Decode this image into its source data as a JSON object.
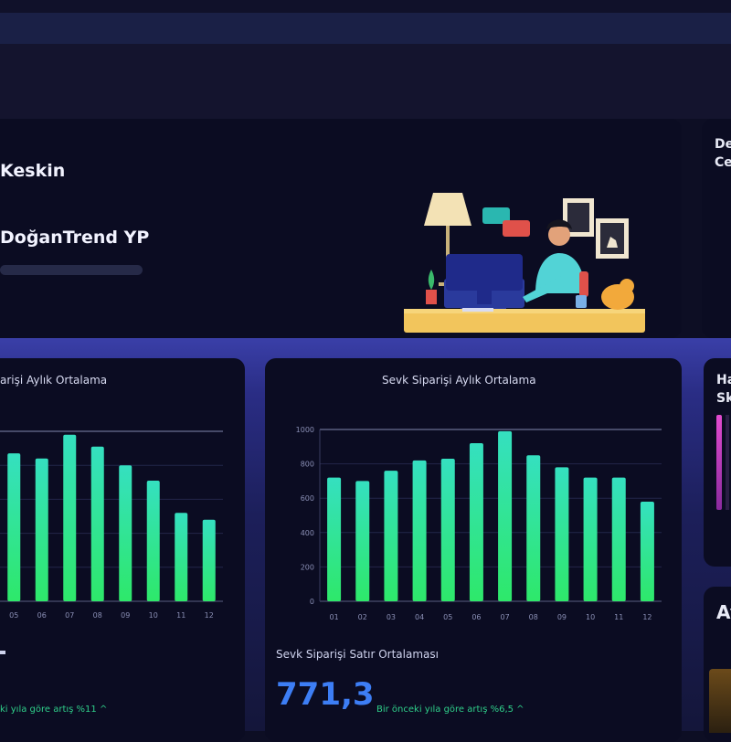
{
  "welcome": {
    "user_name": "Keskin",
    "company": "DoğanTrend YP"
  },
  "right_panels": {
    "top_line1": "De",
    "top_line2": "Ce",
    "mid_line1": "Ha",
    "mid_line2": "Sk",
    "bottom_text": "Ay"
  },
  "charts": [
    {
      "title": "arişi Aylık Ortalama",
      "label": "",
      "value": "",
      "trend": "ki yıla göre artış %11 ^"
    },
    {
      "title": "Sevk Siparişi Aylık Ortalama",
      "label": "Sevk Siparişi Satır Ortalaması",
      "value": "771,3",
      "trend": "Bir önceki yıla göre artış %6,5 ^"
    }
  ],
  "chart_data": [
    {
      "type": "bar",
      "categories": [
        "05",
        "06",
        "07",
        "08",
        "09",
        "10",
        "11",
        "12"
      ],
      "values": [
        870,
        840,
        980,
        910,
        800,
        710,
        520,
        480
      ],
      "ylim": [
        0,
        1000
      ],
      "grid": true,
      "title": "arişi Aylık Ortalama"
    },
    {
      "type": "bar",
      "categories": [
        "01",
        "02",
        "03",
        "04",
        "05",
        "06",
        "07",
        "08",
        "09",
        "10",
        "11",
        "12"
      ],
      "values": [
        720,
        700,
        760,
        820,
        830,
        920,
        990,
        850,
        780,
        720,
        720,
        580
      ],
      "ylim": [
        0,
        1000
      ],
      "yticks": [
        "0",
        "200",
        "400",
        "600",
        "800",
        "1000"
      ],
      "grid": true,
      "title": "Sevk Siparişi Aylık Ortalama"
    }
  ],
  "colors": {
    "bar_top": "#35e0c0",
    "bar_bottom": "#2ee86a",
    "accent_value": "#3d7ef5",
    "trend_green": "#2fcf8a"
  }
}
